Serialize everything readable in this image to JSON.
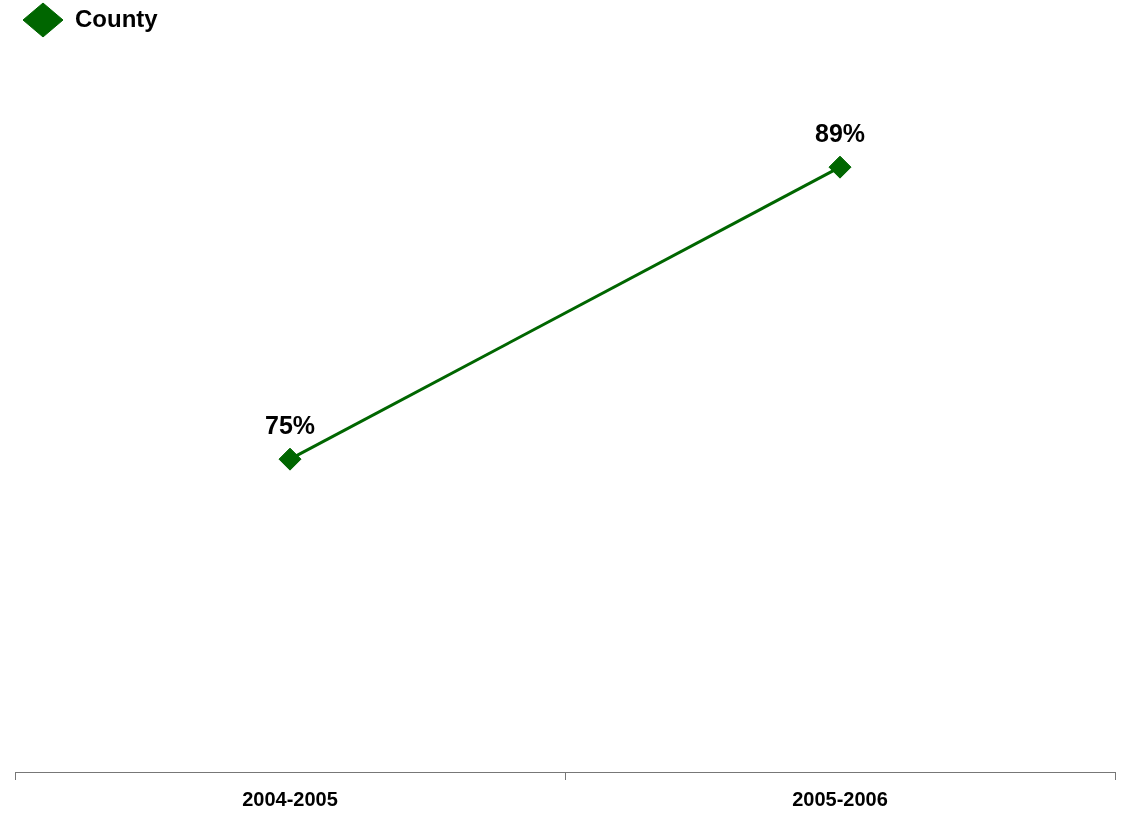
{
  "chart_data": {
    "type": "line",
    "categories": [
      "2004-2005",
      "2005-2006"
    ],
    "series": [
      {
        "name": "County",
        "color": "#006600",
        "values": [
          75,
          89
        ],
        "value_labels": [
          "75%",
          "89%"
        ]
      }
    ],
    "tick_labels": "x",
    "legend": "top left",
    "marker": "diamond",
    "line_style": "solid",
    "grid": false
  }
}
